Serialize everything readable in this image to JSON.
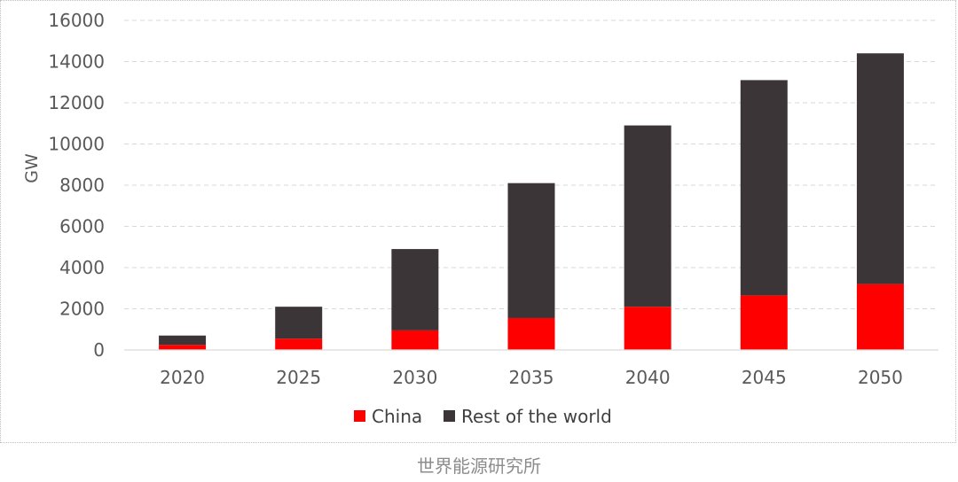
{
  "chart_data": {
    "type": "bar",
    "stacked": true,
    "categories": [
      "2020",
      "2025",
      "2030",
      "2035",
      "2040",
      "2045",
      "2050"
    ],
    "series": [
      {
        "name": "China",
        "color": "#ff0000",
        "values": [
          250,
          550,
          950,
          1550,
          2100,
          2650,
          3200
        ]
      },
      {
        "name": "Rest of the world",
        "color": "#3c3537",
        "values": [
          450,
          1550,
          3950,
          6550,
          8800,
          10450,
          11200
        ]
      }
    ],
    "ylabel": "GW",
    "ylim": [
      0,
      16000
    ],
    "yticks": [
      0,
      2000,
      4000,
      6000,
      8000,
      10000,
      12000,
      14000,
      16000
    ],
    "grid": "horizontal dashed",
    "legend_position": "bottom"
  },
  "footer": {
    "caption": "世界能源研究所"
  }
}
